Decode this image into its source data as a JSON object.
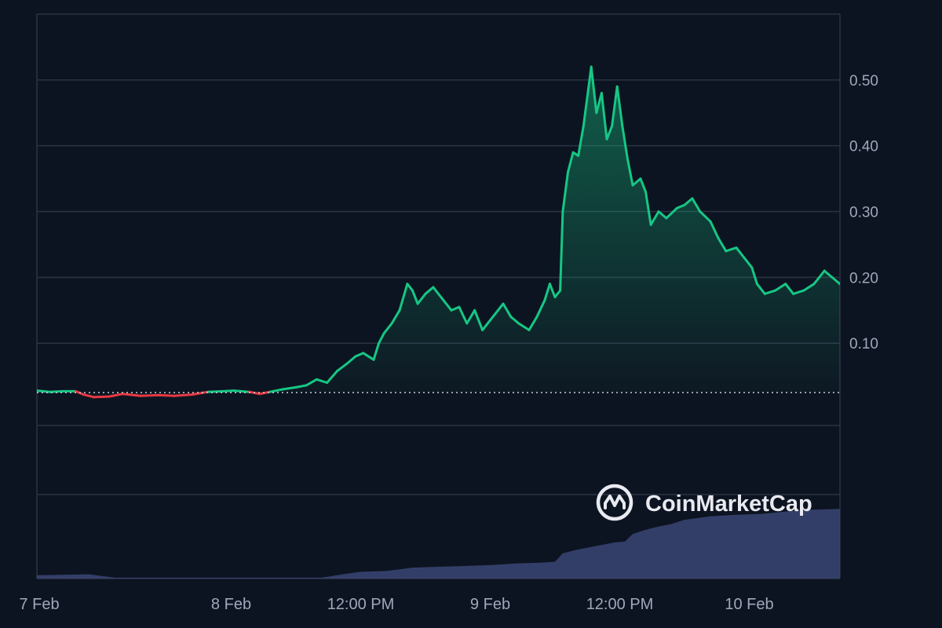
{
  "watermark": {
    "text": "CoinMarketCap"
  },
  "colors": {
    "background": "#0d1421",
    "grid": "#2b3344",
    "up": "#16c784",
    "down": "#ea3943",
    "volume": "#3b4574",
    "reference": "#c9ced8"
  },
  "chart_data": {
    "type": "line",
    "title": "",
    "xlabel": "",
    "ylabel": "",
    "grid": true,
    "x_range": [
      0,
      31
    ],
    "ylim": [
      -0.025,
      0.6
    ],
    "y_ticks": [
      0.1,
      0.2,
      0.3,
      0.4,
      0.5
    ],
    "y_tick_labels": [
      "0.10",
      "0.20",
      "0.30",
      "0.40",
      "0.50"
    ],
    "x_ticks": [
      {
        "label": "7 Feb",
        "x": 0
      },
      {
        "label": "8 Feb",
        "x": 7.5
      },
      {
        "label": "12:00 PM",
        "x": 12.5
      },
      {
        "label": "9 Feb",
        "x": 17.5
      },
      {
        "label": "12:00 PM",
        "x": 22.5
      },
      {
        "label": "10 Feb",
        "x": 27.5
      }
    ],
    "reference_value": 0.025,
    "series": [
      {
        "points": [
          [
            0,
            0.028
          ],
          [
            0.5,
            0.026
          ],
          [
            1,
            0.027
          ],
          [
            1.5,
            0.027
          ],
          [
            1.8,
            0.022
          ],
          [
            2.2,
            0.018
          ],
          [
            2.8,
            0.019
          ],
          [
            3.3,
            0.023
          ],
          [
            4,
            0.02
          ],
          [
            4.7,
            0.021
          ],
          [
            5.3,
            0.02
          ],
          [
            6,
            0.022
          ],
          [
            6.6,
            0.026
          ],
          [
            7.2,
            0.027
          ],
          [
            7.6,
            0.028
          ],
          [
            8.2,
            0.026
          ],
          [
            8.6,
            0.023
          ],
          [
            9,
            0.026
          ],
          [
            9.5,
            0.03
          ],
          [
            10,
            0.033
          ],
          [
            10.4,
            0.036
          ],
          [
            10.8,
            0.045
          ],
          [
            11.2,
            0.04
          ],
          [
            11.6,
            0.058
          ],
          [
            12,
            0.07
          ],
          [
            12.3,
            0.08
          ],
          [
            12.6,
            0.085
          ],
          [
            13,
            0.075
          ],
          [
            13.2,
            0.1
          ],
          [
            13.4,
            0.115
          ],
          [
            13.7,
            0.13
          ],
          [
            14,
            0.15
          ],
          [
            14.3,
            0.19
          ],
          [
            14.5,
            0.18
          ],
          [
            14.7,
            0.16
          ],
          [
            15,
            0.175
          ],
          [
            15.3,
            0.185
          ],
          [
            15.6,
            0.17
          ],
          [
            16,
            0.15
          ],
          [
            16.3,
            0.155
          ],
          [
            16.6,
            0.13
          ],
          [
            16.9,
            0.15
          ],
          [
            17.2,
            0.12
          ],
          [
            17.6,
            0.14
          ],
          [
            18,
            0.16
          ],
          [
            18.3,
            0.14
          ],
          [
            18.6,
            0.13
          ],
          [
            19,
            0.12
          ],
          [
            19.3,
            0.14
          ],
          [
            19.6,
            0.165
          ],
          [
            19.8,
            0.19
          ],
          [
            20,
            0.17
          ],
          [
            20.2,
            0.18
          ],
          [
            20.3,
            0.3
          ],
          [
            20.5,
            0.36
          ],
          [
            20.7,
            0.39
          ],
          [
            20.9,
            0.385
          ],
          [
            21.1,
            0.43
          ],
          [
            21.3,
            0.49
          ],
          [
            21.4,
            0.52
          ],
          [
            21.6,
            0.45
          ],
          [
            21.8,
            0.48
          ],
          [
            22,
            0.41
          ],
          [
            22.2,
            0.43
          ],
          [
            22.4,
            0.49
          ],
          [
            22.6,
            0.43
          ],
          [
            22.8,
            0.38
          ],
          [
            23,
            0.34
          ],
          [
            23.3,
            0.35
          ],
          [
            23.5,
            0.33
          ],
          [
            23.7,
            0.28
          ],
          [
            24,
            0.3
          ],
          [
            24.3,
            0.29
          ],
          [
            24.7,
            0.305
          ],
          [
            25,
            0.31
          ],
          [
            25.3,
            0.32
          ],
          [
            25.6,
            0.3
          ],
          [
            26,
            0.285
          ],
          [
            26.3,
            0.26
          ],
          [
            26.6,
            0.24
          ],
          [
            27,
            0.245
          ],
          [
            27.3,
            0.23
          ],
          [
            27.6,
            0.215
          ],
          [
            27.8,
            0.19
          ],
          [
            28.1,
            0.175
          ],
          [
            28.5,
            0.18
          ],
          [
            28.9,
            0.19
          ],
          [
            29.2,
            0.175
          ],
          [
            29.6,
            0.18
          ],
          [
            30,
            0.19
          ],
          [
            30.4,
            0.21
          ],
          [
            30.7,
            0.2
          ],
          [
            31,
            0.19
          ],
          [
            31.3,
            0.19
          ],
          [
            31.6,
            0.175
          ],
          [
            31.9,
            0.155
          ],
          [
            32,
            0.165
          ]
        ]
      }
    ],
    "volume": {
      "points": [
        [
          0,
          0.04
        ],
        [
          2,
          0.05
        ],
        [
          3,
          0.01
        ],
        [
          11,
          0.01
        ],
        [
          11.8,
          0.05
        ],
        [
          12.5,
          0.08
        ],
        [
          13.5,
          0.09
        ],
        [
          14.5,
          0.13
        ],
        [
          15.5,
          0.14
        ],
        [
          16.5,
          0.15
        ],
        [
          17.5,
          0.16
        ],
        [
          18.5,
          0.18
        ],
        [
          19.5,
          0.19
        ],
        [
          20,
          0.2
        ],
        [
          20.3,
          0.3
        ],
        [
          20.8,
          0.34
        ],
        [
          21.3,
          0.37
        ],
        [
          21.8,
          0.4
        ],
        [
          22.3,
          0.43
        ],
        [
          22.7,
          0.44
        ],
        [
          23,
          0.53
        ],
        [
          23.5,
          0.58
        ],
        [
          24,
          0.62
        ],
        [
          24.5,
          0.65
        ],
        [
          25,
          0.7
        ],
        [
          25.5,
          0.72
        ],
        [
          26,
          0.74
        ],
        [
          27,
          0.76
        ],
        [
          28,
          0.77
        ],
        [
          29,
          0.8
        ],
        [
          30,
          0.82
        ],
        [
          31,
          0.83
        ],
        [
          31.5,
          0.8
        ],
        [
          32,
          0.72
        ]
      ]
    }
  }
}
